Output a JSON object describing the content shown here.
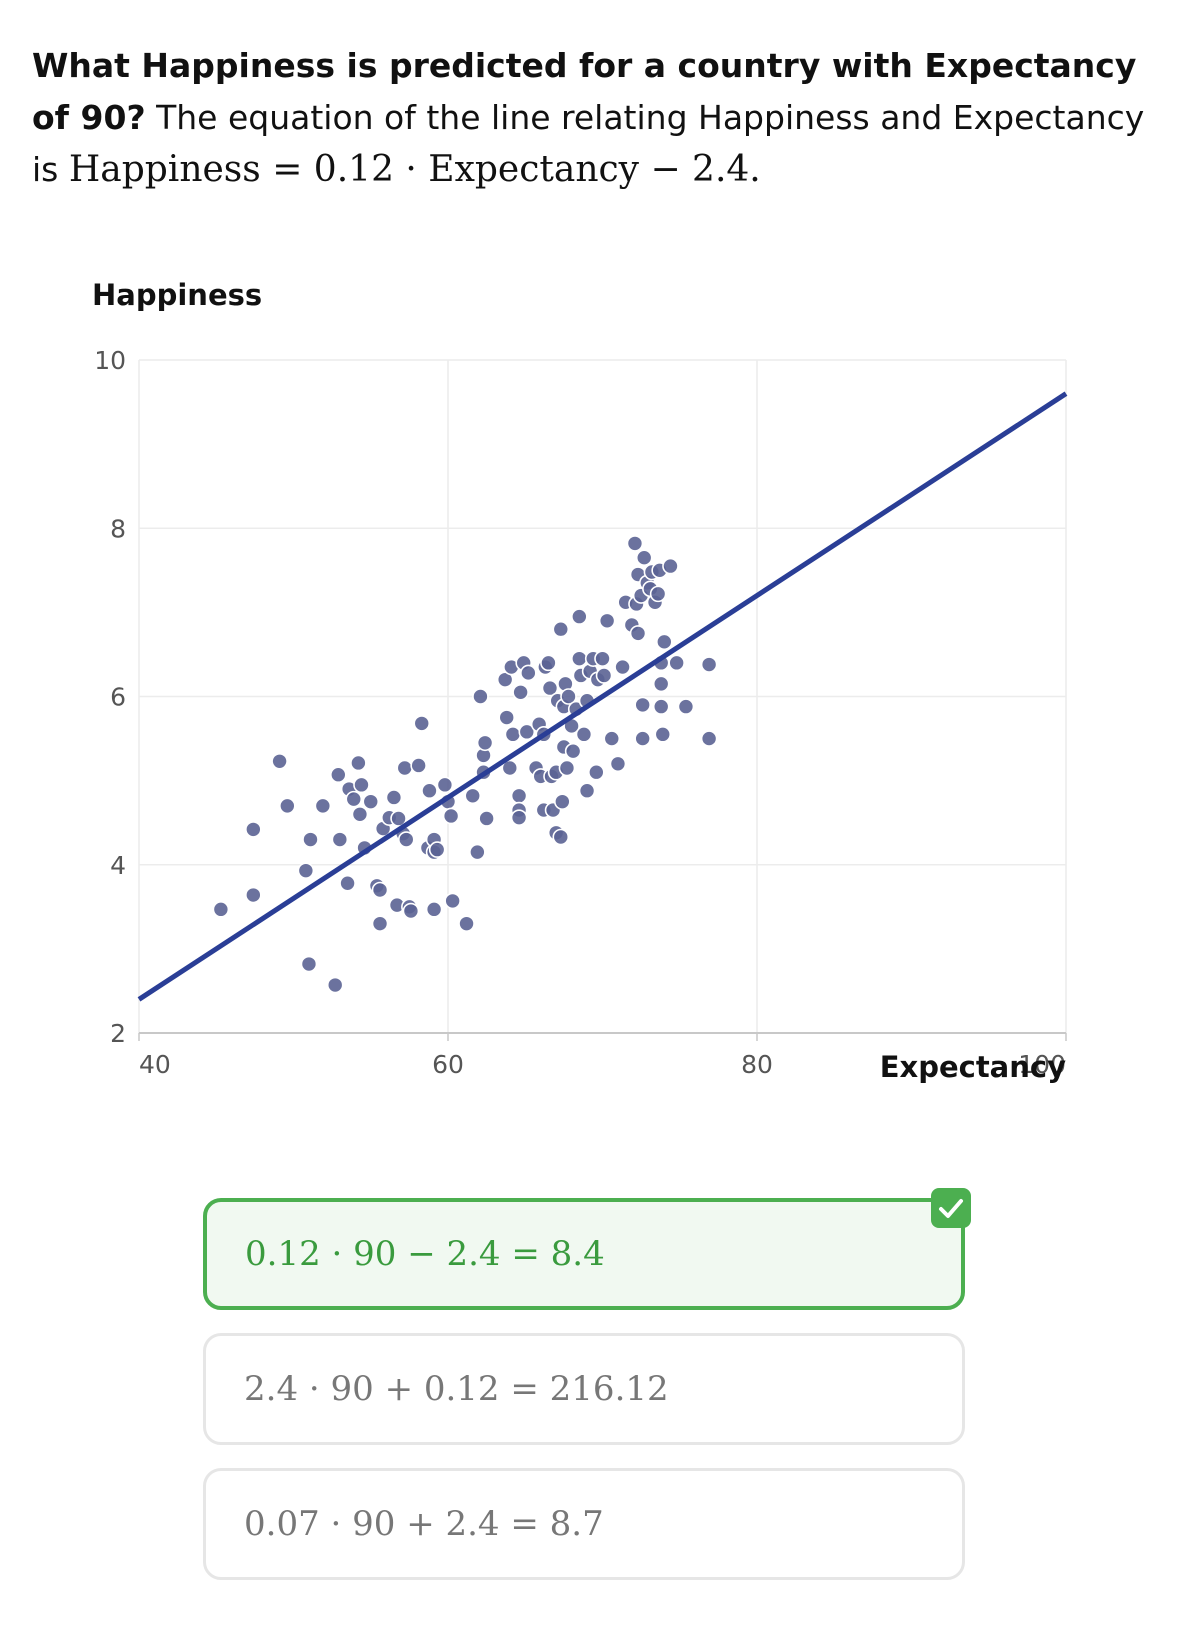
{
  "question": {
    "bold": "What Happiness is predicted for a country with Expectancy of 90?",
    "text": " The equation of the line relating Happiness and Expectancy is ",
    "equation": "Happiness = 0.12 · Expectancy − 2.4."
  },
  "chart_data": {
    "type": "scatter",
    "xlabel": "Expectancy",
    "ylabel": "Happiness",
    "xlim": [
      40,
      100
    ],
    "ylim": [
      2,
      10
    ],
    "xticks": [
      40,
      60,
      80,
      100
    ],
    "yticks": [
      2,
      4,
      6,
      8,
      10
    ],
    "grid": true,
    "line": {
      "slope": 0.12,
      "intercept": -2.4,
      "color": "#2a3e96"
    },
    "point_color": "#5b6394",
    "points": [
      [
        45.3,
        3.47
      ],
      [
        47.4,
        4.42
      ],
      [
        47.4,
        3.64
      ],
      [
        49.1,
        5.23
      ],
      [
        49.6,
        4.7
      ],
      [
        50.8,
        3.93
      ],
      [
        51.0,
        2.82
      ],
      [
        51.1,
        4.3
      ],
      [
        51.9,
        4.7
      ],
      [
        52.7,
        2.57
      ],
      [
        52.9,
        5.07
      ],
      [
        53.0,
        4.3
      ],
      [
        53.5,
        3.78
      ],
      [
        53.6,
        4.9
      ],
      [
        53.9,
        4.78
      ],
      [
        54.2,
        5.21
      ],
      [
        54.3,
        4.6
      ],
      [
        54.4,
        4.95
      ],
      [
        54.6,
        4.2
      ],
      [
        55.0,
        4.75
      ],
      [
        55.4,
        3.75
      ],
      [
        55.6,
        3.7
      ],
      [
        55.6,
        3.3
      ],
      [
        55.8,
        4.43
      ],
      [
        56.2,
        4.56
      ],
      [
        56.5,
        4.8
      ],
      [
        56.7,
        3.52
      ],
      [
        56.8,
        4.55
      ],
      [
        57.1,
        4.37
      ],
      [
        57.2,
        5.15
      ],
      [
        57.3,
        4.3
      ],
      [
        57.5,
        3.5
      ],
      [
        57.6,
        3.45
      ],
      [
        58.1,
        5.18
      ],
      [
        58.3,
        5.68
      ],
      [
        58.7,
        4.2
      ],
      [
        58.8,
        4.88
      ],
      [
        59.1,
        3.47
      ],
      [
        59.1,
        4.3
      ],
      [
        59.1,
        4.15
      ],
      [
        59.3,
        4.18
      ],
      [
        59.8,
        4.95
      ],
      [
        60.0,
        4.75
      ],
      [
        60.2,
        4.58
      ],
      [
        60.3,
        3.57
      ],
      [
        61.2,
        3.3
      ],
      [
        61.6,
        4.82
      ],
      [
        61.9,
        4.15
      ],
      [
        62.1,
        6.0
      ],
      [
        62.3,
        5.3
      ],
      [
        62.3,
        5.1
      ],
      [
        62.4,
        5.45
      ],
      [
        62.5,
        4.55
      ],
      [
        63.7,
        6.2
      ],
      [
        63.8,
        5.75
      ],
      [
        64.0,
        5.15
      ],
      [
        64.1,
        6.35
      ],
      [
        64.2,
        5.55
      ],
      [
        64.6,
        4.82
      ],
      [
        64.6,
        4.65
      ],
      [
        64.6,
        4.56
      ],
      [
        64.7,
        6.05
      ],
      [
        64.9,
        6.4
      ],
      [
        65.1,
        5.58
      ],
      [
        65.2,
        6.28
      ],
      [
        65.7,
        5.15
      ],
      [
        65.9,
        5.67
      ],
      [
        66.0,
        5.05
      ],
      [
        66.2,
        5.55
      ],
      [
        66.2,
        4.65
      ],
      [
        66.3,
        6.35
      ],
      [
        66.5,
        6.4
      ],
      [
        66.6,
        6.1
      ],
      [
        66.7,
        5.05
      ],
      [
        66.8,
        4.65
      ],
      [
        67.0,
        5.1
      ],
      [
        67.0,
        4.38
      ],
      [
        67.1,
        5.95
      ],
      [
        67.3,
        6.8
      ],
      [
        67.3,
        4.33
      ],
      [
        67.4,
        4.75
      ],
      [
        67.5,
        5.88
      ],
      [
        67.5,
        5.4
      ],
      [
        67.6,
        6.15
      ],
      [
        67.7,
        5.15
      ],
      [
        67.8,
        6.0
      ],
      [
        68.0,
        5.65
      ],
      [
        68.1,
        5.35
      ],
      [
        68.3,
        5.85
      ],
      [
        68.5,
        6.95
      ],
      [
        68.5,
        6.45
      ],
      [
        68.6,
        6.25
      ],
      [
        68.8,
        5.55
      ],
      [
        69.0,
        5.95
      ],
      [
        69.0,
        4.88
      ],
      [
        69.2,
        6.3
      ],
      [
        69.4,
        6.45
      ],
      [
        69.6,
        5.1
      ],
      [
        69.7,
        6.2
      ],
      [
        70.0,
        6.45
      ],
      [
        70.1,
        6.25
      ],
      [
        70.3,
        6.9
      ],
      [
        70.6,
        5.5
      ],
      [
        71.0,
        5.2
      ],
      [
        71.3,
        6.35
      ],
      [
        71.5,
        7.12
      ],
      [
        71.9,
        6.85
      ],
      [
        72.1,
        7.82
      ],
      [
        72.2,
        7.1
      ],
      [
        72.3,
        6.75
      ],
      [
        72.3,
        7.45
      ],
      [
        72.5,
        7.2
      ],
      [
        72.6,
        5.9
      ],
      [
        72.6,
        5.5
      ],
      [
        72.7,
        7.65
      ],
      [
        72.9,
        7.35
      ],
      [
        73.1,
        7.28
      ],
      [
        73.2,
        7.48
      ],
      [
        73.4,
        7.12
      ],
      [
        73.6,
        7.22
      ],
      [
        73.7,
        7.5
      ],
      [
        73.8,
        6.4
      ],
      [
        73.8,
        5.88
      ],
      [
        73.8,
        6.15
      ],
      [
        73.9,
        5.55
      ],
      [
        74.0,
        6.65
      ],
      [
        74.4,
        7.55
      ],
      [
        74.8,
        6.4
      ],
      [
        75.4,
        5.88
      ],
      [
        76.9,
        6.38
      ],
      [
        76.9,
        5.5
      ]
    ]
  },
  "answers": [
    {
      "text": "0.12 · 90 − 2.4 = 8.4",
      "correct": true
    },
    {
      "text": "2.4 · 90 + 0.12 = 216.12",
      "correct": false
    },
    {
      "text": "0.07 · 90 + 2.4 = 8.7",
      "correct": false
    }
  ],
  "colors": {
    "correct": "#4caf50",
    "line": "#2a3e96",
    "points": "#5b6394"
  }
}
